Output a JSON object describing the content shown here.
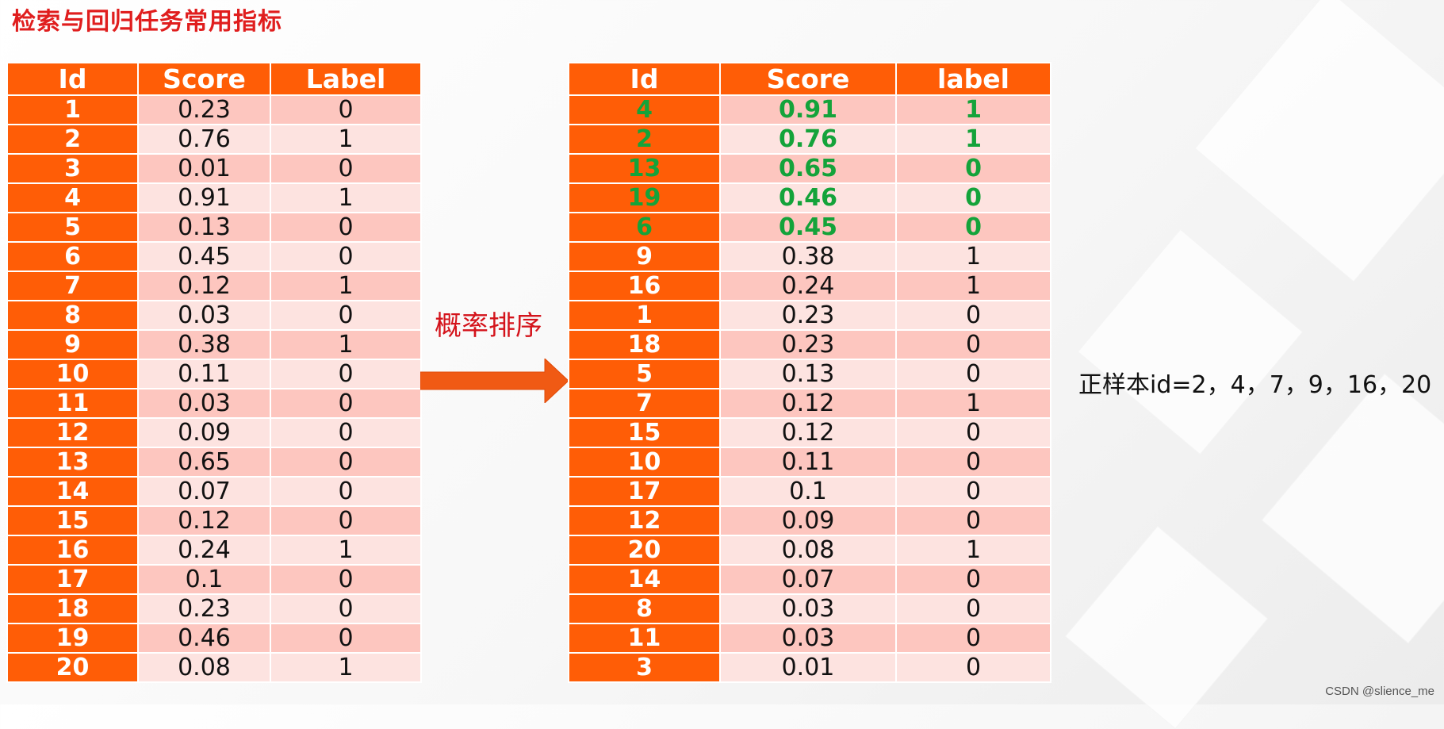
{
  "slide": {
    "title": "检索与回归任务常用指标",
    "arrow_label": "概率排序",
    "note": "正样本id=2，4，7，9，16，20",
    "watermark": "CSDN @slience_me",
    "colors": {
      "header_bg": "#ff5d06",
      "id_bg": "#ff5d06",
      "row_dark": "#fdc6bf",
      "row_light": "#fde3e0",
      "highlight_text": "#14a33a",
      "title": "#e01e1e",
      "arrow": "#f05a14"
    }
  },
  "left_table": {
    "headers": [
      "Id",
      "Score",
      "Label"
    ],
    "rows": [
      [
        "1",
        "0.23",
        "0"
      ],
      [
        "2",
        "0.76",
        "1"
      ],
      [
        "3",
        "0.01",
        "0"
      ],
      [
        "4",
        "0.91",
        "1"
      ],
      [
        "5",
        "0.13",
        "0"
      ],
      [
        "6",
        "0.45",
        "0"
      ],
      [
        "7",
        "0.12",
        "1"
      ],
      [
        "8",
        "0.03",
        "0"
      ],
      [
        "9",
        "0.38",
        "1"
      ],
      [
        "10",
        "0.11",
        "0"
      ],
      [
        "11",
        "0.03",
        "0"
      ],
      [
        "12",
        "0.09",
        "0"
      ],
      [
        "13",
        "0.65",
        "0"
      ],
      [
        "14",
        "0.07",
        "0"
      ],
      [
        "15",
        "0.12",
        "0"
      ],
      [
        "16",
        "0.24",
        "1"
      ],
      [
        "17",
        "0.1",
        "0"
      ],
      [
        "18",
        "0.23",
        "0"
      ],
      [
        "19",
        "0.46",
        "0"
      ],
      [
        "20",
        "0.08",
        "1"
      ]
    ]
  },
  "right_table": {
    "headers": [
      "Id",
      "Score",
      "label"
    ],
    "highlighted_top_rows": 5,
    "rows": [
      [
        "4",
        "0.91",
        "1"
      ],
      [
        "2",
        "0.76",
        "1"
      ],
      [
        "13",
        "0.65",
        "0"
      ],
      [
        "19",
        "0.46",
        "0"
      ],
      [
        "6",
        "0.45",
        "0"
      ],
      [
        "9",
        "0.38",
        "1"
      ],
      [
        "16",
        "0.24",
        "1"
      ],
      [
        "1",
        "0.23",
        "0"
      ],
      [
        "18",
        "0.23",
        "0"
      ],
      [
        "5",
        "0.13",
        "0"
      ],
      [
        "7",
        "0.12",
        "1"
      ],
      [
        "15",
        "0.12",
        "0"
      ],
      [
        "10",
        "0.11",
        "0"
      ],
      [
        "17",
        "0.1",
        "0"
      ],
      [
        "12",
        "0.09",
        "0"
      ],
      [
        "20",
        "0.08",
        "1"
      ],
      [
        "14",
        "0.07",
        "0"
      ],
      [
        "8",
        "0.03",
        "0"
      ],
      [
        "11",
        "0.03",
        "0"
      ],
      [
        "3",
        "0.01",
        "0"
      ]
    ]
  }
}
